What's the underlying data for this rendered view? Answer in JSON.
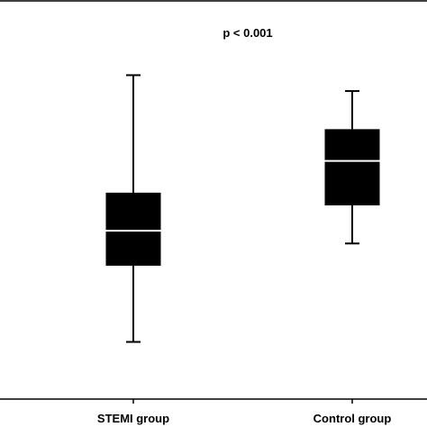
{
  "chart_data": {
    "type": "box",
    "title": "",
    "xlabel": "",
    "ylabel": "",
    "annotation": "p < 0.001",
    "categories": [
      "STEMI group",
      "Control group"
    ],
    "boxes": [
      {
        "category": "STEMI group",
        "whisker_low": 0.18,
        "q1": 0.42,
        "median": 0.53,
        "q3": 0.65,
        "whisker_high": 1.02
      },
      {
        "category": "Control group",
        "whisker_low": 0.49,
        "q1": 0.61,
        "median": 0.75,
        "q3": 0.85,
        "whisker_high": 0.97
      }
    ],
    "ylim": [
      0,
      1.2
    ],
    "y_ticks_visible": false,
    "grid": false,
    "legend": "none",
    "colors": {
      "box_fill": "#000000",
      "median_line": "#ffffff",
      "whisker": "#000000",
      "axis": "#000000"
    }
  }
}
